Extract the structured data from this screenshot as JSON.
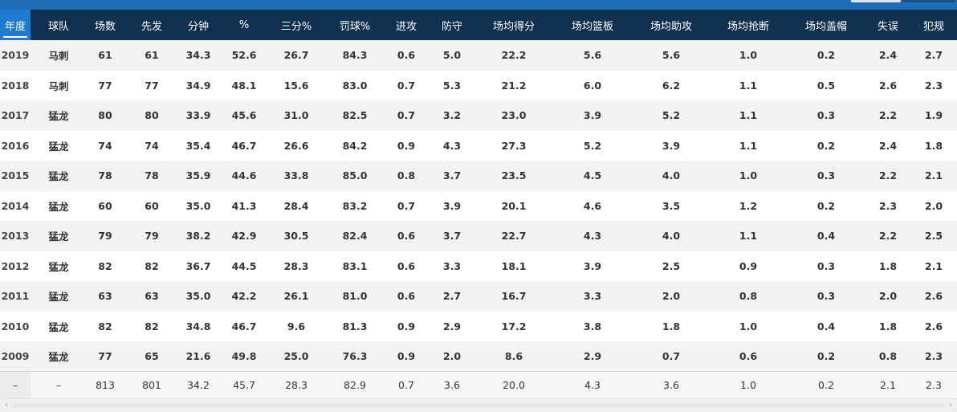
{
  "header": {
    "columns": [
      "年度",
      "球队",
      "场数",
      "先发",
      "分钟",
      "%",
      "三分%",
      "罚球%",
      "进攻",
      "防守",
      "场均得分",
      "场均篮板",
      "场均助攻",
      "场均抢断",
      "场均盖帽",
      "失误",
      "犯规"
    ],
    "active_column": "年度"
  },
  "rows": [
    [
      "2019",
      "马刺",
      "61",
      "61",
      "34.3",
      "52.6",
      "26.7",
      "84.3",
      "0.6",
      "5.0",
      "22.2",
      "5.6",
      "5.6",
      "1.0",
      "0.2",
      "2.4",
      "2.7"
    ],
    [
      "2018",
      "马刺",
      "77",
      "77",
      "34.9",
      "48.1",
      "15.6",
      "83.0",
      "0.7",
      "5.3",
      "21.2",
      "6.0",
      "6.2",
      "1.1",
      "0.5",
      "2.6",
      "2.3"
    ],
    [
      "2017",
      "猛龙",
      "80",
      "80",
      "33.9",
      "45.6",
      "31.0",
      "82.5",
      "0.7",
      "3.2",
      "23.0",
      "3.9",
      "5.2",
      "1.1",
      "0.3",
      "2.2",
      "1.9"
    ],
    [
      "2016",
      "猛龙",
      "74",
      "74",
      "35.4",
      "46.7",
      "26.6",
      "84.2",
      "0.9",
      "4.3",
      "27.3",
      "5.2",
      "3.9",
      "1.1",
      "0.2",
      "2.4",
      "1.8"
    ],
    [
      "2015",
      "猛龙",
      "78",
      "78",
      "35.9",
      "44.6",
      "33.8",
      "85.0",
      "0.8",
      "3.7",
      "23.5",
      "4.5",
      "4.0",
      "1.0",
      "0.3",
      "2.2",
      "2.1"
    ],
    [
      "2014",
      "猛龙",
      "60",
      "60",
      "35.0",
      "41.3",
      "28.4",
      "83.2",
      "0.7",
      "3.9",
      "20.1",
      "4.6",
      "3.5",
      "1.2",
      "0.2",
      "2.3",
      "2.0"
    ],
    [
      "2013",
      "猛龙",
      "79",
      "79",
      "38.2",
      "42.9",
      "30.5",
      "82.4",
      "0.6",
      "3.7",
      "22.7",
      "4.3",
      "4.0",
      "1.1",
      "0.4",
      "2.2",
      "2.5"
    ],
    [
      "2012",
      "猛龙",
      "82",
      "82",
      "36.7",
      "44.5",
      "28.3",
      "83.1",
      "0.6",
      "3.3",
      "18.1",
      "3.9",
      "2.5",
      "0.9",
      "0.3",
      "1.8",
      "2.1"
    ],
    [
      "2011",
      "猛龙",
      "63",
      "63",
      "35.0",
      "42.2",
      "26.1",
      "81.0",
      "0.6",
      "2.7",
      "16.7",
      "3.3",
      "2.0",
      "0.8",
      "0.3",
      "2.0",
      "2.6"
    ],
    [
      "2010",
      "猛龙",
      "82",
      "82",
      "34.8",
      "46.7",
      "9.6",
      "81.3",
      "0.9",
      "2.9",
      "17.2",
      "3.8",
      "1.8",
      "1.0",
      "0.4",
      "1.8",
      "2.6"
    ],
    [
      "2009",
      "猛龙",
      "77",
      "65",
      "21.6",
      "49.8",
      "25.0",
      "76.3",
      "0.9",
      "2.0",
      "8.6",
      "2.9",
      "0.7",
      "0.6",
      "0.2",
      "0.8",
      "2.3"
    ]
  ],
  "totals": [
    "–",
    "–",
    "813",
    "801",
    "34.2",
    "45.7",
    "28.3",
    "82.9",
    "0.7",
    "3.6",
    "20.0",
    "4.3",
    "3.6",
    "1.0",
    "0.2",
    "2.1",
    "2.3"
  ],
  "scrollbar": {
    "left_icon": "chevron-left-icon",
    "right_icon": "chevron-right-icon",
    "left_glyph": "‹",
    "right_glyph": "›"
  },
  "colors": {
    "header_bg": "#0f3050",
    "active_header_bg": "#1f7ad0",
    "top_strip": "#1f6eb5",
    "row_alt_bg": "#f3f3f3"
  }
}
